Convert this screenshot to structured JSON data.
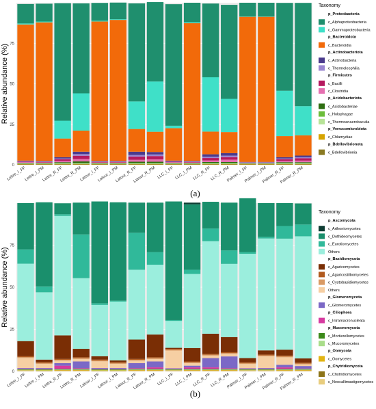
{
  "panel_labels": [
    "(a)",
    "(b)"
  ],
  "chart_data": [
    {
      "type": "bar",
      "stacked": true,
      "title": "",
      "xlabel": "",
      "ylabel": "Relative abundance (%)",
      "ylim": [
        0,
        100
      ],
      "yticks": [
        0,
        25,
        50,
        75
      ],
      "categories": [
        "Lettre_I_PF",
        "Lettre_I_PM",
        "Lettre_R_PF",
        "Lettre_R_PM",
        "Latour_I_PF",
        "Latour_I_PM",
        "Latour_R_PF",
        "Latour_R_PM",
        "LLC_I_PF",
        "LLC_I_PM",
        "LLC_R_PF",
        "LLC_R_PM",
        "Palmer_I_PF",
        "Palmer_I_PM",
        "Palmer_R_PF",
        "Palmer_R_PM"
      ],
      "legend_title": "Taxonomy",
      "legend_position": "right",
      "groups": [
        {
          "phylum": "p_Proteobacteria",
          "classes": [
            {
              "name": "c_Alphaproteobacteria",
              "color": "#1f8f6e"
            },
            {
              "name": "c_Gammaproteobacteria",
              "color": "#3fe0c8"
            }
          ]
        },
        {
          "phylum": "p_Bacteroidota",
          "classes": [
            {
              "name": "c_Bacteroidia",
              "color": "#f26a0a"
            }
          ]
        },
        {
          "phylum": "p_Actinobacteriota",
          "classes": [
            {
              "name": "c_Actinobacteria",
              "color": "#4a3a8c"
            },
            {
              "name": "c_Thermoleophilia",
              "color": "#9a86d1"
            }
          ]
        },
        {
          "phylum": "p_Firmicutes",
          "classes": [
            {
              "name": "c_Bacilli",
              "color": "#b5195f"
            },
            {
              "name": "c_Clostridia",
              "color": "#e56fb0"
            }
          ]
        },
        {
          "phylum": "p_Acidobacteriota",
          "classes": [
            {
              "name": "c_Acidobacteriae",
              "color": "#2e6e12"
            },
            {
              "name": "c_Holophagae",
              "color": "#6cbd3a"
            },
            {
              "name": "c_Thermoanaerobaculia",
              "color": "#b7e397"
            }
          ]
        },
        {
          "phylum": "p_Verrucomicrobiota",
          "classes": [
            {
              "name": "c_Chlamydiae",
              "color": "#d6a400"
            }
          ]
        },
        {
          "phylum": "p_Bdellovibrionota",
          "classes": [
            {
              "name": "c_Bdellovibrionia",
              "color": "#8a7a22"
            }
          ]
        }
      ],
      "series": [
        {
          "name": "c_Bdellovibrionia",
          "values": [
            0.3,
            0.3,
            0.3,
            0.3,
            0.3,
            0.3,
            0.3,
            0.3,
            0.3,
            0.3,
            0.3,
            0.3,
            0.2,
            0.2,
            0.3,
            0.3
          ]
        },
        {
          "name": "c_Chlamydiae",
          "values": [
            0.2,
            0.2,
            0.2,
            0.2,
            0.2,
            0.2,
            0.2,
            0.2,
            0.2,
            0.2,
            0.2,
            0.2,
            0.2,
            0.2,
            0.2,
            0.2
          ]
        },
        {
          "name": "c_Thermoanaerobaculia",
          "values": [
            0.2,
            0.2,
            0.3,
            0.3,
            0.2,
            0.2,
            0.3,
            0.3,
            0.2,
            0.2,
            0.3,
            0.3,
            0.2,
            0.2,
            0.3,
            0.3
          ]
        },
        {
          "name": "c_Holophagae",
          "values": [
            0.2,
            0.2,
            0.3,
            0.3,
            0.2,
            0.2,
            0.3,
            0.3,
            0.2,
            0.2,
            0.3,
            0.3,
            0.2,
            0.2,
            0.3,
            0.3
          ]
        },
        {
          "name": "c_Acidobacteriae",
          "values": [
            0.3,
            0.3,
            0.5,
            1.0,
            0.3,
            0.3,
            0.8,
            0.8,
            0.3,
            0.3,
            0.6,
            0.6,
            0.2,
            0.2,
            0.5,
            0.5
          ]
        },
        {
          "name": "c_Clostridia",
          "values": [
            0.5,
            0.3,
            0.8,
            1.5,
            0.3,
            0.3,
            1.2,
            1.5,
            0.4,
            0.3,
            1.0,
            1.5,
            0.2,
            0.2,
            0.8,
            1.0
          ]
        },
        {
          "name": "c_Bacilli",
          "values": [
            0.3,
            0.3,
            1.0,
            2.0,
            0.3,
            0.3,
            2.0,
            2.0,
            0.3,
            0.3,
            1.5,
            1.5,
            0.2,
            0.2,
            1.0,
            1.5
          ]
        },
        {
          "name": "c_Thermoleophilia",
          "values": [
            0.3,
            0.3,
            0.5,
            1.0,
            0.3,
            0.3,
            1.0,
            1.0,
            0.3,
            0.3,
            0.8,
            1.0,
            0.2,
            0.2,
            0.5,
            0.6
          ]
        },
        {
          "name": "c_Actinobacteria",
          "values": [
            0.3,
            0.3,
            0.8,
            1.5,
            0.3,
            0.3,
            2.0,
            1.5,
            0.4,
            0.3,
            1.5,
            1.5,
            0.2,
            0.2,
            0.8,
            1.0
          ]
        },
        {
          "name": "c_Bacteroidia",
          "values": [
            84.0,
            85.5,
            11.5,
            13.0,
            86.0,
            87.0,
            14.0,
            12.5,
            20.0,
            85.0,
            14.0,
            13.0,
            89.5,
            89.5,
            13.0,
            12.5
          ]
        },
        {
          "name": "c_Gammaproteobacteria",
          "values": [
            0.6,
            0.5,
            11.0,
            23.0,
            0.5,
            0.4,
            17.0,
            31.0,
            1.5,
            0.6,
            33.5,
            20.5,
            0.2,
            0.2,
            28.0,
            18.0
          ]
        },
        {
          "name": "c_Alphaproteobacteria",
          "values": [
            12.0,
            11.0,
            72.5,
            55.5,
            11.0,
            10.3,
            60.5,
            49.0,
            75.0,
            12.0,
            45.5,
            58.0,
            8.5,
            8.5,
            54.2,
            63.7
          ]
        }
      ]
    },
    {
      "type": "bar",
      "stacked": true,
      "title": "",
      "xlabel": "",
      "ylabel": "Relative abundance (%)",
      "ylim": [
        0,
        100
      ],
      "yticks": [
        0,
        25,
        50,
        75
      ],
      "categories": [
        "Lettre_I_PF",
        "Lettre_I_PM",
        "Lettre_R_PF",
        "Lettre_R_PM",
        "Latour_I_PF",
        "Latour_I_PM",
        "Latour_R_PF",
        "Latour_R_PM",
        "LLC_I_PF",
        "LLC_I_PM",
        "LLC_R_PF",
        "LLC_R_PM",
        "Palmer_I_PF",
        "Palmer_I_PM",
        "Palmer_R_PF",
        "Palmer_R_PM"
      ],
      "legend_title": "Taxonomy",
      "legend_position": "right",
      "groups": [
        {
          "phylum": "p_Ascomycota",
          "classes": [
            {
              "name": "c_Arthoniomycetes",
              "color": "#0e3d33"
            },
            {
              "name": "c_Dothideomycetes",
              "color": "#1a8f6c"
            },
            {
              "name": "c_Eurotiomycetes",
              "color": "#30b99a"
            },
            {
              "name": "Others",
              "color": "#9beedd"
            }
          ]
        },
        {
          "phylum": "p_Basidiomycota",
          "classes": [
            {
              "name": "c_Agaricomycetes",
              "color": "#7a2e05"
            },
            {
              "name": "c_Agaricostilbomycetes",
              "color": "#b15a1e"
            },
            {
              "name": "c_Cystobasidiomycetes",
              "color": "#d99a63"
            },
            {
              "name": "Others",
              "color": "#f6cfa3"
            }
          ]
        },
        {
          "phylum": "p_Glomeromycota",
          "classes": [
            {
              "name": "c_Glomeromycetes",
              "color": "#7b68c6"
            }
          ]
        },
        {
          "phylum": "p_Ciliophora",
          "classes": [
            {
              "name": "c_Intramacronucleata",
              "color": "#d63aa0"
            }
          ]
        },
        {
          "phylum": "p_Mucoromycota",
          "classes": [
            {
              "name": "c_Mortierellomycetes",
              "color": "#3c8a1a"
            },
            {
              "name": "c_Mucoromycetes",
              "color": "#a9dd8a"
            }
          ]
        },
        {
          "phylum": "p_Oomycota",
          "classes": [
            {
              "name": "c_Oomycetes",
              "color": "#e2b412"
            }
          ]
        },
        {
          "phylum": "p_Chytridiomycota",
          "classes": [
            {
              "name": "c_Chytridiomycetes",
              "color": "#8d7418"
            },
            {
              "name": "c_Neocallimastigomycetes",
              "color": "#e8cd7e"
            }
          ]
        }
      ],
      "series": [
        {
          "name": "c_Neocallimastigomycetes",
          "values": [
            0.3,
            0.2,
            0.3,
            0.3,
            0.2,
            0.2,
            0.3,
            0.3,
            0.3,
            0.3,
            0.3,
            0.3,
            0.3,
            0.3,
            0.3,
            0.3
          ]
        },
        {
          "name": "c_Chytridiomycetes",
          "values": [
            0.2,
            0.2,
            0.2,
            0.2,
            0.2,
            0.2,
            0.2,
            0.2,
            0.2,
            0.2,
            0.2,
            0.2,
            0.2,
            0.2,
            0.2,
            0.2
          ]
        },
        {
          "name": "c_Oomycetes",
          "values": [
            0.2,
            0.2,
            0.3,
            0.3,
            0.2,
            0.2,
            0.3,
            0.3,
            0.2,
            0.3,
            0.3,
            0.3,
            0.2,
            0.2,
            0.3,
            0.3
          ]
        },
        {
          "name": "c_Mucoromycetes",
          "values": [
            0.3,
            0.3,
            0.3,
            0.3,
            0.3,
            0.3,
            0.3,
            0.3,
            0.3,
            0.3,
            0.3,
            0.3,
            0.3,
            0.3,
            0.3,
            0.3
          ]
        },
        {
          "name": "c_Mortierellomycetes",
          "values": [
            0.3,
            0.3,
            0.3,
            0.3,
            0.3,
            0.3,
            0.3,
            0.3,
            0.3,
            0.3,
            0.3,
            0.3,
            0.3,
            0.3,
            0.3,
            0.3
          ]
        },
        {
          "name": "c_Intramacronucleata",
          "values": [
            0.3,
            0.3,
            2.0,
            0.5,
            0.3,
            0.3,
            0.5,
            1.0,
            0.3,
            1.0,
            1.0,
            0.5,
            0.3,
            0.3,
            1.0,
            0.3
          ]
        },
        {
          "name": "c_Glomeromycetes",
          "values": [
            0.4,
            0.5,
            1.5,
            4.0,
            0.5,
            0.5,
            3.0,
            3.5,
            0.3,
            1.0,
            5.5,
            7.0,
            0.3,
            0.4,
            1.5,
            1.5
          ]
        },
        {
          "name": "Others",
          "values": [
            6.0,
            2.5,
            1.5,
            1.5,
            4.0,
            2.5,
            1.5,
            1.5,
            10.5,
            1.5,
            1.5,
            1.5,
            2.5,
            7.0,
            4.5,
            1.0
          ]
        },
        {
          "name": "c_Cystobasidiomycetes",
          "values": [
            0.5,
            0.5,
            0.5,
            0.5,
            0.5,
            0.5,
            0.5,
            0.5,
            0.5,
            0.5,
            0.5,
            0.5,
            0.5,
            0.5,
            0.5,
            0.5
          ]
        },
        {
          "name": "c_Agaricostilbomycetes",
          "values": [
            0.5,
            0.5,
            0.5,
            0.5,
            0.5,
            0.5,
            0.5,
            0.5,
            0.5,
            0.5,
            0.5,
            0.5,
            0.5,
            0.5,
            0.5,
            0.5
          ]
        },
        {
          "name": "c_Agaricomycetes",
          "values": [
            9.0,
            1.5,
            14.0,
            5.0,
            2.0,
            1.0,
            11.5,
            13.5,
            0.6,
            8.0,
            12.0,
            9.0,
            2.5,
            2.5,
            3.5,
            2.5
          ]
        },
        {
          "name": "Others",
          "values": [
            46.0,
            40.0,
            71.0,
            42.0,
            30.5,
            35.0,
            41.5,
            41.5,
            16.0,
            44.0,
            55.0,
            43.5,
            62.0,
            66.5,
            66.0,
            72.6
          ]
        },
        {
          "name": "c_Eurotiomycetes",
          "values": [
            8.5,
            3.5,
            1.0,
            26.0,
            1.0,
            0.5,
            22.0,
            7.5,
            0.5,
            2.5,
            7.5,
            8.0,
            1.0,
            1.0,
            7.5,
            7.0
          ]
        },
        {
          "name": "c_Dothideomycetes",
          "values": [
            27.5,
            50.0,
            6.5,
            18.9,
            60.5,
            58.5,
            17.9,
            29.4,
            70.5,
            38.9,
            15.9,
            28.4,
            32.0,
            20.0,
            13.6,
            12.5
          ]
        },
        {
          "name": "c_Arthoniomycetes",
          "values": [
            0.0,
            0.0,
            0.0,
            0.0,
            0.0,
            0.0,
            0.0,
            0.0,
            0.0,
            1.0,
            0.0,
            0.0,
            0.0,
            0.0,
            0.0,
            0.0
          ]
        }
      ]
    }
  ]
}
